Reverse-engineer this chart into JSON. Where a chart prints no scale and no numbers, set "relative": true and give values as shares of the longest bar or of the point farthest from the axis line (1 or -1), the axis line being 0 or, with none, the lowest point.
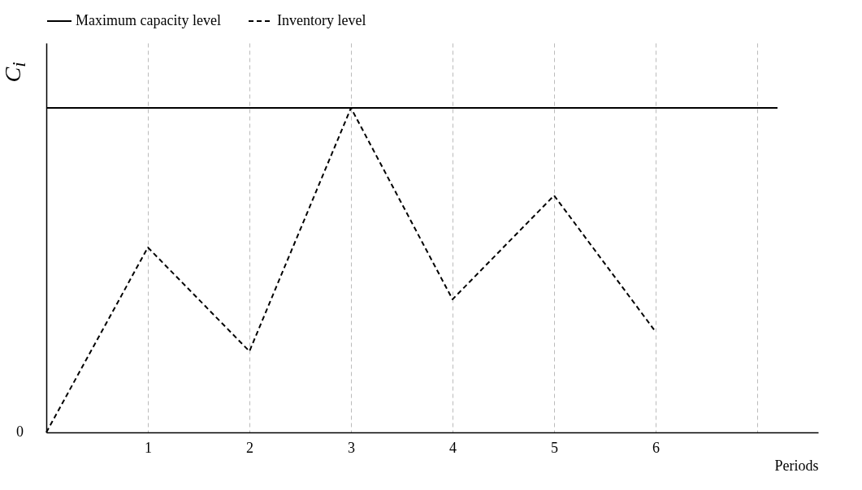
{
  "chart_data": {
    "type": "line",
    "relative": true,
    "ylabel": "C$_{i}$",
    "xlabel": "Periods",
    "x": [
      0,
      1,
      2,
      3,
      4,
      5,
      6
    ],
    "xlim": [
      0,
      7.6
    ],
    "xticks": [
      1,
      2,
      3,
      4,
      5,
      6,
      {
        "value": 7,
        "label": null
      }
    ],
    "series": [
      {
        "name": "Maximum capacity level",
        "color": "#000000",
        "line_style": "solid",
        "x": [
          0,
          7.2
        ],
        "values": [
          1,
          1
        ]
      },
      {
        "name": "Inventory level",
        "color": "#000000",
        "line_style": "dashed",
        "values": [
          0,
          0.57,
          0.25,
          1,
          0.41,
          0.73,
          0.31
        ]
      }
    ],
    "annotations": [
      "0"
    ],
    "grid": "x",
    "legend": "top",
    "marker": "none"
  }
}
